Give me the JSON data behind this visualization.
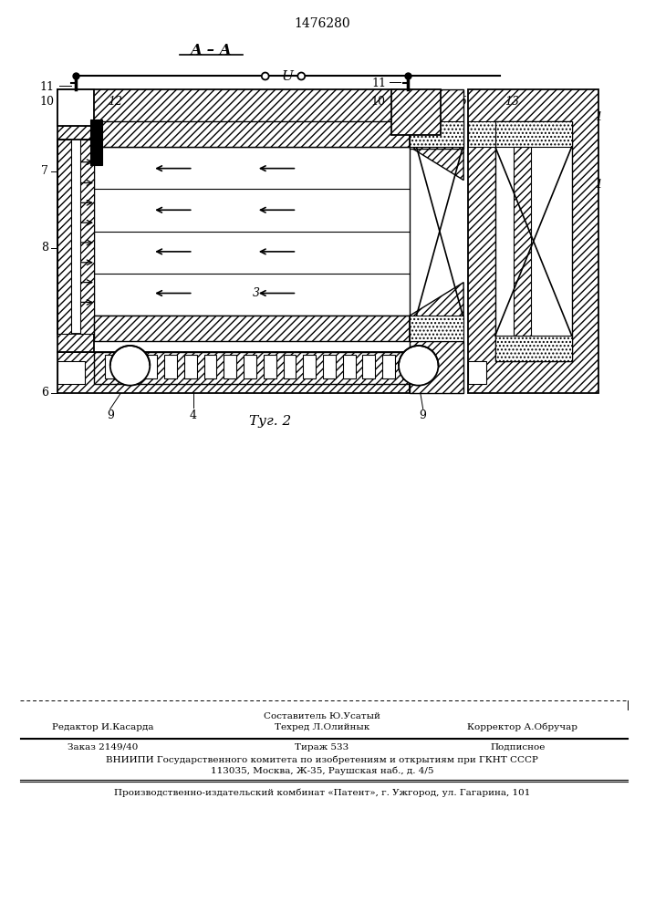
{
  "title": "1476280",
  "section_label": "A–A",
  "fig_label": "Τуг. 2",
  "voltage_label": "U",
  "bg_color": "#ffffff",
  "line_color": "#000000",
  "editor_line": "Редактор И.Касарда",
  "composer_line": "Составитель Ю.Усатый",
  "techred_line": "Техред Л.Олийнык",
  "corrector_line": "Корректор А.Обручар",
  "order_line": "Заказ 2149/40",
  "tirazh_line": "Тираж 533",
  "podpisnoe_line": "Подписное",
  "vniiipi_line": "ВНИИПИ Государственного комитета по изобретениям и открытиям при ГКНТ СССР",
  "address_line": "113035, Москва, Ж-35, Раушская наб., д. 4/5",
  "patent_line": "Производственно-издательский комбинат «Патент», г. Ужгород, ул. Гагарина, 101"
}
